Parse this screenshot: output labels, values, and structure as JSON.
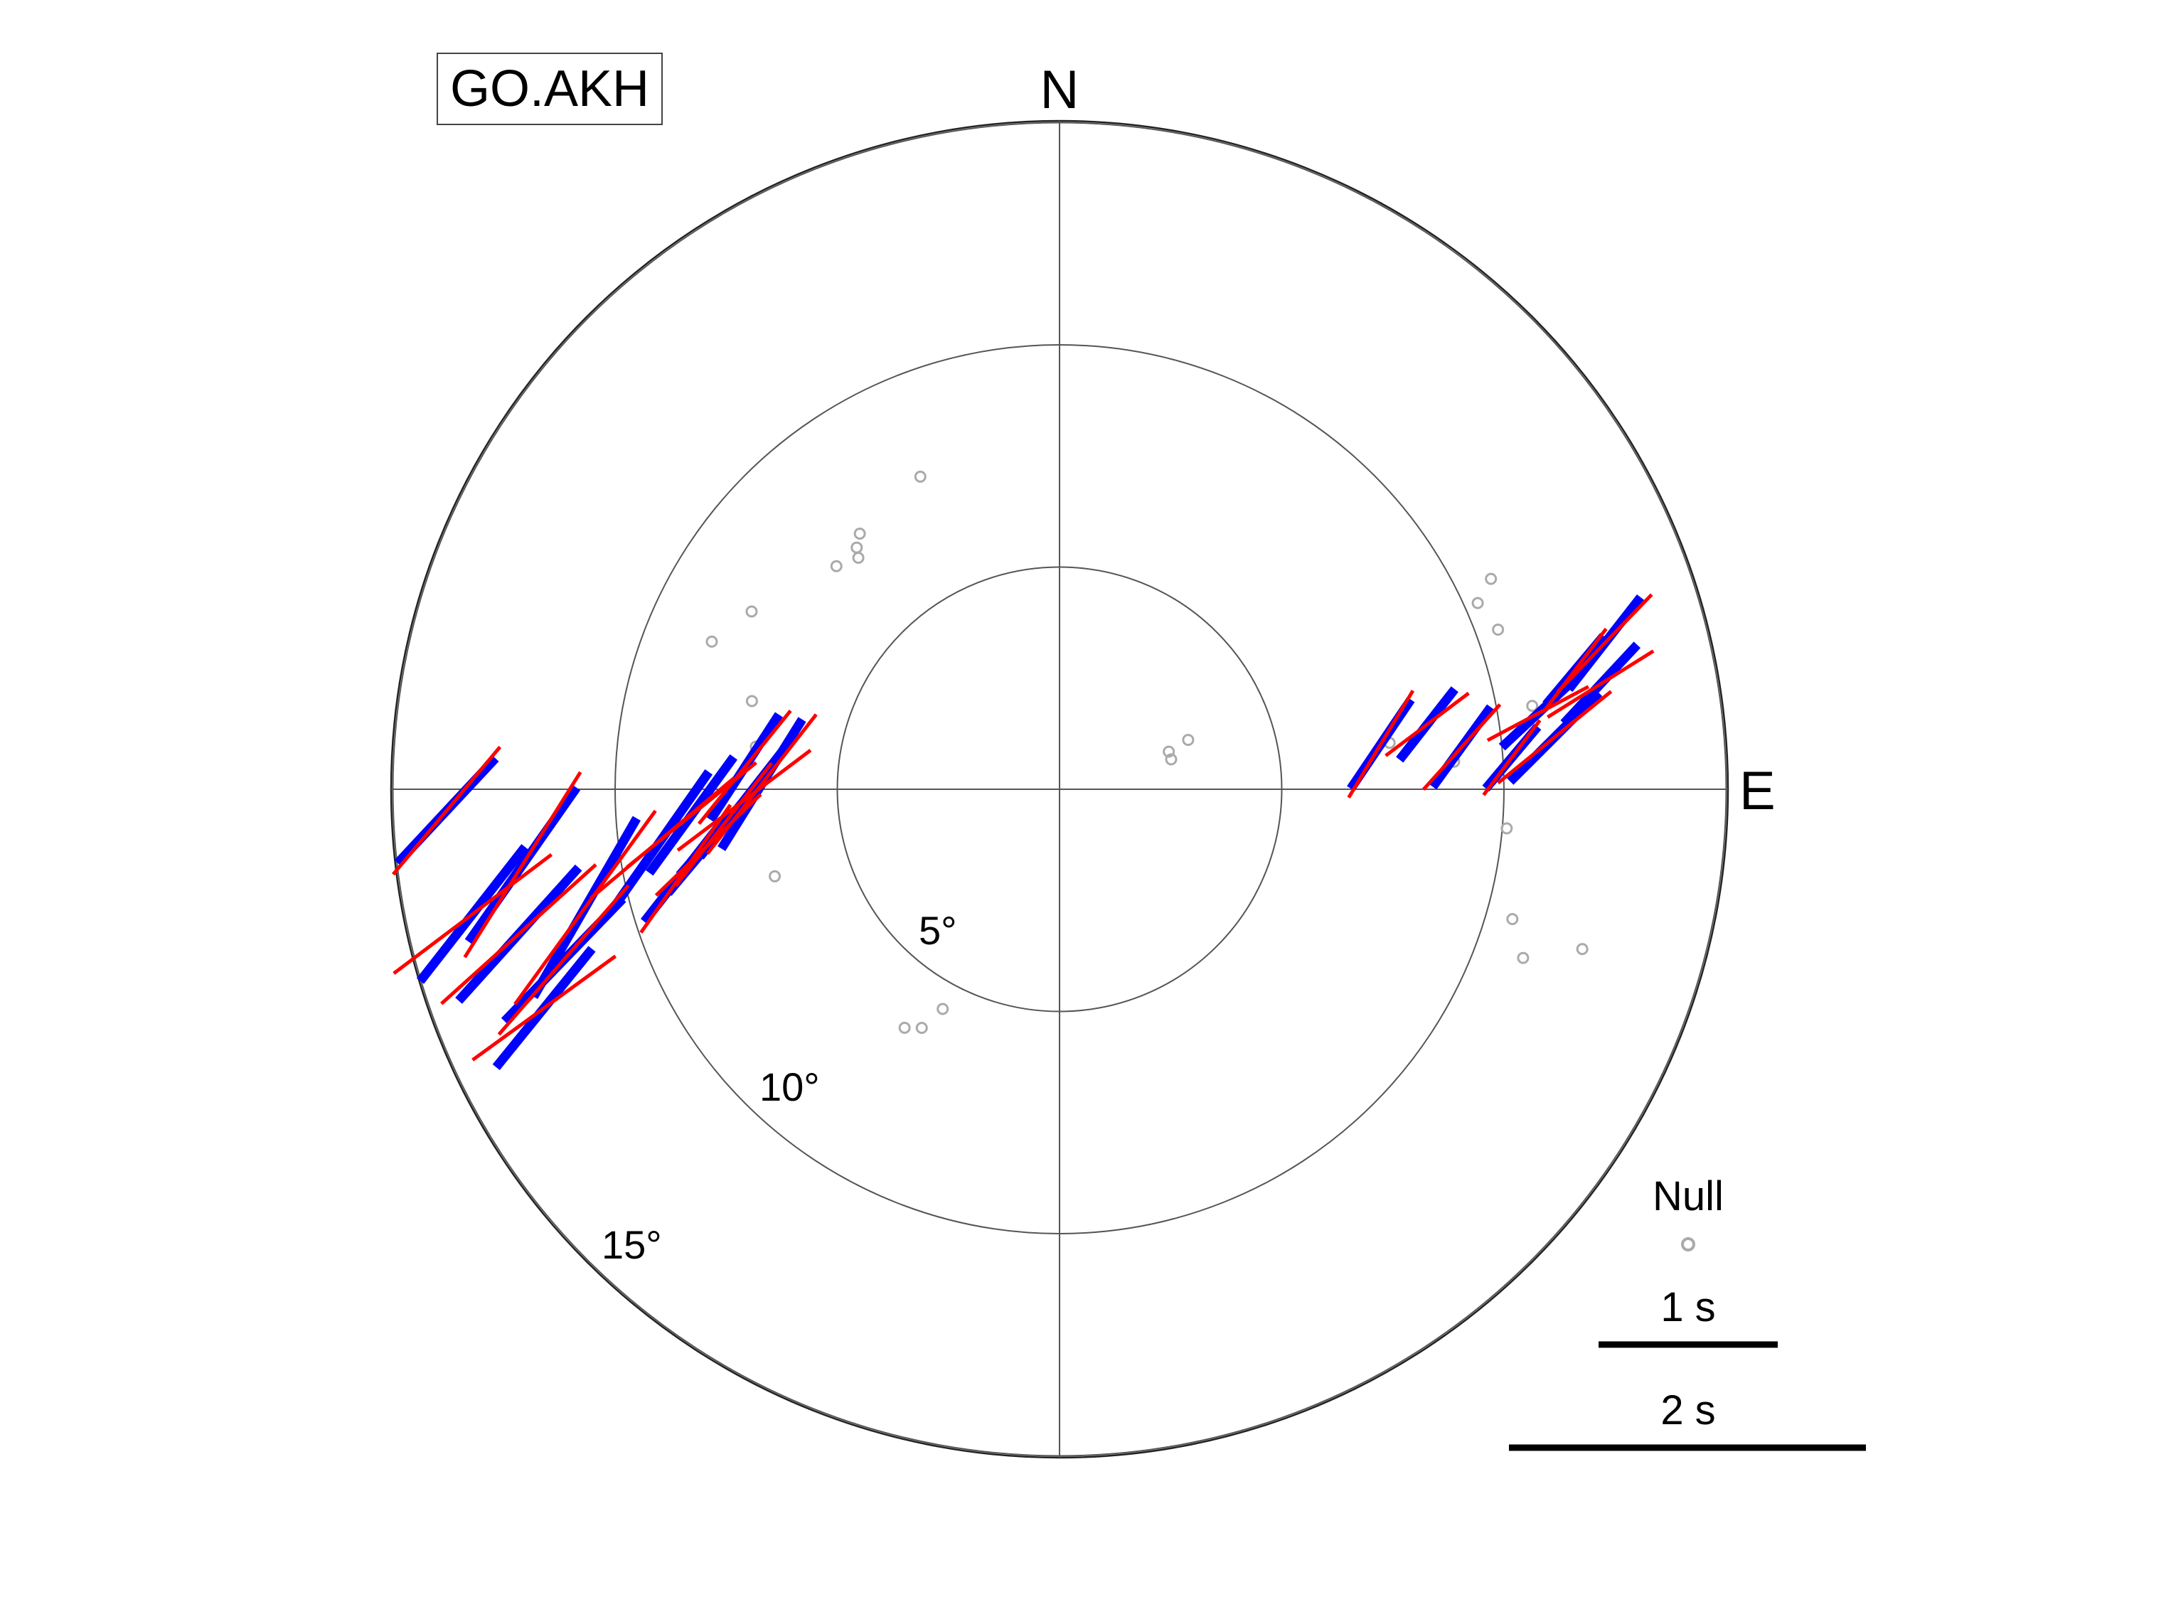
{
  "station_label": "GO.AKH",
  "colors": {
    "axis": "#555555",
    "ring": "#555555",
    "outer_ring": "#222222",
    "fast_axis": "#0000ff",
    "red_bar": "#ff0000",
    "null": "#aaaaaa",
    "scale_bar": "#000000"
  },
  "chart_data": {
    "type": "polar-splitting",
    "compass": {
      "north": "N",
      "east": "E"
    },
    "rings": [
      {
        "value": 5,
        "label": "5°"
      },
      {
        "value": 10,
        "label": "10°"
      },
      {
        "value": 15,
        "label": "15°"
      }
    ],
    "legend": {
      "null_label": "Null",
      "scale": [
        {
          "label": "1 s",
          "seconds": 1
        },
        {
          "label": "2 s",
          "seconds": 2
        }
      ]
    },
    "measurements": [
      {
        "baz": 251,
        "inc": 11.8,
        "phi": 44,
        "dt": 1.9
      },
      {
        "baz": 255,
        "inc": 12.6,
        "phi": 42,
        "dt": 2.0
      },
      {
        "baz": 258,
        "inc": 13.5,
        "phi": 38,
        "dt": 1.9
      },
      {
        "baz": 262,
        "inc": 12.2,
        "phi": 35,
        "dt": 2.1
      },
      {
        "baz": 256,
        "inc": 11.0,
        "phi": 30,
        "dt": 2.3
      },
      {
        "baz": 247,
        "inc": 12.6,
        "phi": 39,
        "dt": 1.7
      },
      {
        "baz": 268,
        "inc": 13.8,
        "phi": 43,
        "dt": 1.6
      },
      {
        "baz": 274,
        "inc": 7.1,
        "phi": 33,
        "dt": 1.4
      },
      {
        "baz": 268,
        "inc": 7.1,
        "phi": 38,
        "dt": 1.6
      },
      {
        "baz": 264,
        "inc": 7.6,
        "phi": 41,
        "dt": 1.5
      },
      {
        "baz": 261,
        "inc": 8.0,
        "phi": 40,
        "dt": 1.4
      },
      {
        "baz": 266,
        "inc": 8.3,
        "phi": 36,
        "dt": 1.6
      },
      {
        "baz": 258,
        "inc": 8.6,
        "phi": 38,
        "dt": 1.5
      },
      {
        "baz": 271,
        "inc": 6.7,
        "phi": 32,
        "dt": 1.7
      },
      {
        "baz": 263,
        "inc": 9.0,
        "phi": 35,
        "dt": 1.8
      },
      {
        "baz": 82,
        "inc": 7.3,
        "phi": 34,
        "dt": 1.2
      },
      {
        "baz": 84,
        "inc": 9.1,
        "phi": 36,
        "dt": 1.1
      },
      {
        "baz": 80,
        "inc": 8.4,
        "phi": 38,
        "dt": 1.0
      },
      {
        "baz": 86,
        "inc": 10.2,
        "phi": 40,
        "dt": 0.9
      },
      {
        "baz": 84,
        "inc": 11.2,
        "phi": 45,
        "dt": 1.4
      },
      {
        "baz": 79,
        "inc": 12.4,
        "phi": 43,
        "dt": 1.2
      },
      {
        "baz": 77,
        "inc": 11.9,
        "phi": 40,
        "dt": 1.0
      },
      {
        "baz": 75,
        "inc": 12.7,
        "phi": 38,
        "dt": 1.3
      },
      {
        "baz": 81,
        "inc": 10.9,
        "phi": 47,
        "dt": 1.1
      }
    ],
    "nulls": [
      {
        "baz": 336,
        "inc": 7.7
      },
      {
        "baz": 322,
        "inc": 7.3
      },
      {
        "baz": 320,
        "inc": 7.1
      },
      {
        "baz": 319,
        "inc": 6.9
      },
      {
        "baz": 315,
        "inc": 7.1
      },
      {
        "baz": 300,
        "inc": 8.0
      },
      {
        "baz": 293,
        "inc": 8.5
      },
      {
        "baz": 286,
        "inc": 7.2
      },
      {
        "baz": 278,
        "inc": 6.9
      },
      {
        "baz": 253,
        "inc": 6.7
      },
      {
        "baz": 208,
        "inc": 5.6
      },
      {
        "baz": 213,
        "inc": 6.4
      },
      {
        "baz": 210,
        "inc": 6.2
      },
      {
        "baz": 75,
        "inc": 2.6
      },
      {
        "baz": 71,
        "inc": 2.6
      },
      {
        "baz": 69,
        "inc": 3.1
      },
      {
        "baz": 66,
        "inc": 10.3
      },
      {
        "baz": 64,
        "inc": 10.8
      },
      {
        "baz": 70,
        "inc": 10.5
      },
      {
        "baz": 80,
        "inc": 10.8
      },
      {
        "baz": 95,
        "inc": 10.1
      },
      {
        "baz": 106,
        "inc": 10.6
      },
      {
        "baz": 110,
        "inc": 11.1
      },
      {
        "baz": 107,
        "inc": 12.3
      },
      {
        "baz": 82,
        "inc": 7.5
      },
      {
        "baz": 86,
        "inc": 8.9
      }
    ]
  }
}
